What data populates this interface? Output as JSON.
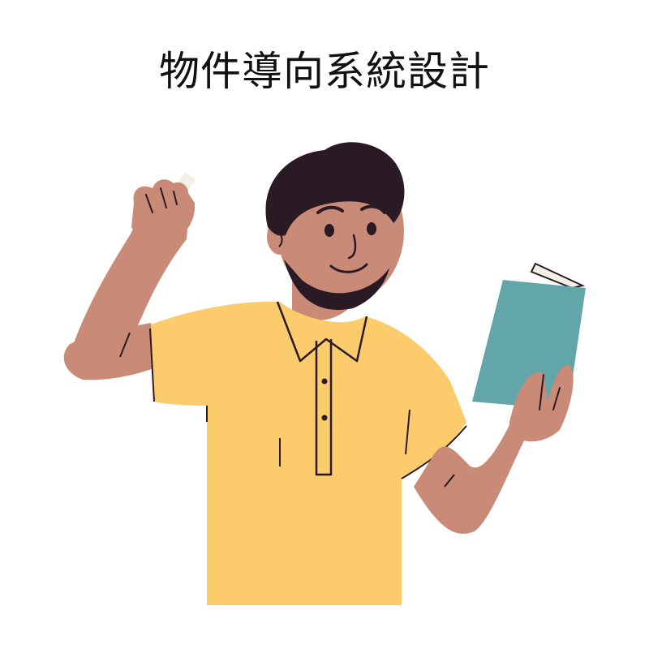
{
  "title": "物件導向系統設計",
  "illustration": {
    "subject": "teacher-holding-chalk-and-book",
    "colors": {
      "skin": "#C98A78",
      "hair": "#2A1A24",
      "shirt": "#FBCB6C",
      "book": "#62A6A9",
      "chalk": "#F2F1E4",
      "outline": "#2A1A24"
    }
  }
}
